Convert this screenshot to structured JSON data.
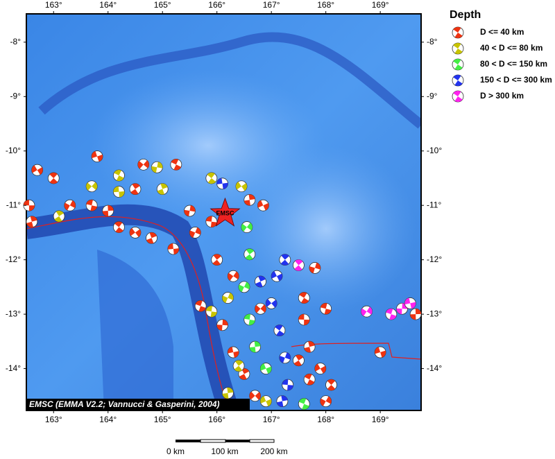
{
  "map": {
    "xlim": [
      162.5,
      169.75
    ],
    "ylim": [
      -14.77,
      -7.48
    ],
    "xticks": [
      {
        "value": 163,
        "label": "163°"
      },
      {
        "value": 164,
        "label": "164°"
      },
      {
        "value": 165,
        "label": "165°"
      },
      {
        "value": 166,
        "label": "166°"
      },
      {
        "value": 167,
        "label": "167°"
      },
      {
        "value": 168,
        "label": "168°"
      },
      {
        "value": 169,
        "label": "169°"
      }
    ],
    "yticks": [
      {
        "value": -8,
        "label": "-8°"
      },
      {
        "value": -9,
        "label": "-9°"
      },
      {
        "value": -10,
        "label": "-10°"
      },
      {
        "value": -11,
        "label": "-11°"
      },
      {
        "value": -12,
        "label": "-12°"
      },
      {
        "value": -13,
        "label": "-13°"
      },
      {
        "value": -14,
        "label": "-14°"
      }
    ],
    "epicenter": {
      "label": "EMSC",
      "lon": 166.15,
      "lat": -11.15
    },
    "credit": "EMSC (EMMA V2.2; Vannucci & Gasperini, 2004)",
    "scale_bar": {
      "labels": [
        "0 km",
        "100 km",
        "200 km"
      ]
    },
    "legend": {
      "title": "Depth",
      "items": [
        {
          "label": "D <= 40 km",
          "color": "#ee3311",
          "lon": [
            162.55,
            162.6,
            162.7,
            163.0,
            163.3,
            163.7,
            164.0,
            163.8,
            164.5,
            164.65,
            165.25,
            165.5,
            165.2,
            164.8,
            164.5,
            164.2,
            165.6,
            165.9,
            166.6,
            166.85,
            166.0,
            166.3,
            165.7,
            166.1,
            166.3,
            166.5,
            166.7,
            167.6,
            167.8,
            167.6,
            167.7,
            167.9,
            168.1,
            168.0,
            168.0,
            169.65,
            169.0,
            167.5,
            166.8,
            167.7
          ],
          "lat": [
            -11.0,
            -11.3,
            -10.35,
            -10.5,
            -11.0,
            -11.0,
            -11.1,
            -10.1,
            -10.7,
            -10.25,
            -10.25,
            -11.1,
            -11.8,
            -11.6,
            -11.5,
            -11.4,
            -11.5,
            -11.3,
            -10.9,
            -11.0,
            -12.0,
            -12.3,
            -12.85,
            -13.2,
            -13.7,
            -14.1,
            -14.5,
            -12.7,
            -12.15,
            -13.1,
            -13.6,
            -14.0,
            -14.3,
            -14.6,
            -12.9,
            -13.0,
            -13.7,
            -13.85,
            -12.9,
            -14.2
          ]
        },
        {
          "label": "40 < D <= 80 km",
          "color": "#c8c400",
          "lon": [
            163.1,
            163.7,
            164.2,
            164.9,
            164.2,
            165.0,
            166.45,
            165.9,
            166.2,
            165.9,
            166.2,
            166.9,
            166.4
          ],
          "lat": [
            -11.2,
            -10.65,
            -10.45,
            -10.3,
            -10.75,
            -10.7,
            -10.65,
            -10.5,
            -12.7,
            -12.95,
            -14.45,
            -14.6,
            -13.95
          ]
        },
        {
          "label": "80 < D <= 150 km",
          "color": "#44ee44",
          "lon": [
            166.5,
            166.6,
            166.7,
            166.9,
            166.6,
            166.55,
            167.6
          ],
          "lat": [
            -12.5,
            -13.1,
            -13.6,
            -14.0,
            -11.9,
            -11.4,
            -14.65
          ]
        },
        {
          "label": "150 < D <= 300 km",
          "color": "#2233ee",
          "lon": [
            166.1,
            166.8,
            167.0,
            167.15,
            167.25,
            167.3,
            167.2,
            167.1,
            167.25
          ],
          "lat": [
            -10.6,
            -12.4,
            -12.8,
            -13.3,
            -13.8,
            -14.3,
            -14.6,
            -12.3,
            -12.0
          ]
        },
        {
          "label": "D > 300 km",
          "color": "#ff22ee",
          "lon": [
            167.5,
            168.75,
            169.2,
            169.4,
            169.55
          ],
          "lat": [
            -12.1,
            -12.95,
            -13.0,
            -12.9,
            -12.8
          ]
        }
      ]
    }
  }
}
